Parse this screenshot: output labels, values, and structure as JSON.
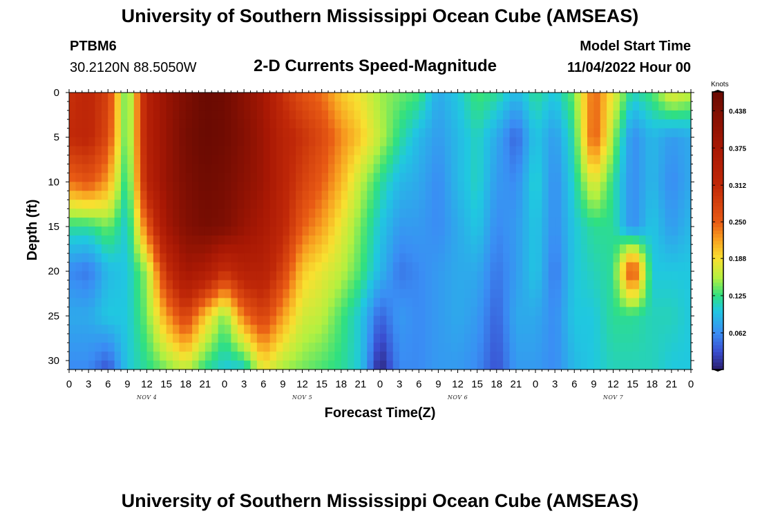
{
  "page": {
    "title_top": "University of Southern Mississippi Ocean Cube (AMSEAS)",
    "title_bottom": "University of Southern Mississippi Ocean Cube (AMSEAS)",
    "station": "PTBM6",
    "coords": "30.2120N  88.5050W",
    "plot_title": "2-D Currents Speed-Magnitude",
    "model_start_label": "Model Start Time",
    "model_start_value": "11/04/2022 Hour 00"
  },
  "chart_data": {
    "type": "heatmap",
    "title": "2-D Currents Speed-Magnitude",
    "xlabel": "Forecast Time(Z)",
    "ylabel": "Depth (ft)",
    "x_range_hours": [
      0,
      96
    ],
    "y_range_ft": [
      0,
      31
    ],
    "y_inverted": true,
    "x_tick_labels": [
      "0",
      "3",
      "6",
      "9",
      "12",
      "15",
      "18",
      "21",
      "0",
      "3",
      "6",
      "9",
      "12",
      "15",
      "18",
      "21",
      "0",
      "3",
      "6",
      "9",
      "12",
      "15",
      "18",
      "21",
      "0",
      "3",
      "6",
      "9",
      "12",
      "15",
      "18",
      "21",
      "0"
    ],
    "x_tick_hours": [
      0,
      3,
      6,
      9,
      12,
      15,
      18,
      21,
      24,
      27,
      30,
      33,
      36,
      39,
      42,
      45,
      48,
      51,
      54,
      57,
      60,
      63,
      66,
      69,
      72,
      75,
      78,
      81,
      84,
      87,
      90,
      93,
      96
    ],
    "y_ticks": [
      0,
      5,
      10,
      15,
      20,
      25,
      30
    ],
    "day_labels": [
      {
        "label": "NOV 4",
        "hour": 12
      },
      {
        "label": "NOV 5",
        "hour": 36
      },
      {
        "label": "NOV 6",
        "hour": 60
      },
      {
        "label": "NOV 7",
        "hour": 84
      }
    ],
    "colorbar": {
      "units": "Knots",
      "min": 0,
      "max": 0.47,
      "ticks": [
        "0.438",
        "0.375",
        "0.312",
        "0.250",
        "0.188",
        "0.125",
        "0.062"
      ],
      "tick_values": [
        0.438,
        0.375,
        0.312,
        0.25,
        0.188,
        0.125,
        0.062
      ]
    },
    "color_stops": [
      {
        "value": 0.0,
        "color": "#2a1e6e"
      },
      {
        "value": 0.03,
        "color": "#3a4ed0"
      },
      {
        "value": 0.062,
        "color": "#3a8ef4"
      },
      {
        "value": 0.1,
        "color": "#20c8e0"
      },
      {
        "value": 0.125,
        "color": "#30e080"
      },
      {
        "value": 0.155,
        "color": "#b4f040"
      },
      {
        "value": 0.188,
        "color": "#f8e030"
      },
      {
        "value": 0.22,
        "color": "#f8a020"
      },
      {
        "value": 0.25,
        "color": "#e85a14"
      },
      {
        "value": 0.312,
        "color": "#c02808"
      },
      {
        "value": 0.375,
        "color": "#a81804"
      },
      {
        "value": 0.47,
        "color": "#6a0a02"
      }
    ],
    "time_series_hours": [
      0,
      3,
      6,
      9,
      12,
      15,
      18,
      21,
      24,
      27,
      30,
      33,
      36,
      39,
      42,
      45,
      48,
      51,
      54,
      57,
      60,
      63,
      66,
      69,
      72,
      75,
      78,
      81,
      84,
      87,
      90,
      93,
      96
    ],
    "depth_series_ft": [
      0,
      5,
      10,
      15,
      20,
      25,
      31
    ],
    "speed_knots_by_depth": [
      [
        0.3,
        0.32,
        0.28,
        0.12,
        0.34,
        0.4,
        0.44,
        0.47,
        0.46,
        0.42,
        0.38,
        0.3,
        0.26,
        0.24,
        0.2,
        0.18,
        0.15,
        0.14,
        0.13,
        0.08,
        0.1,
        0.13,
        0.12,
        0.09,
        0.12,
        0.1,
        0.14,
        0.25,
        0.18,
        0.11,
        0.13,
        0.18,
        0.16
      ],
      [
        0.31,
        0.32,
        0.27,
        0.12,
        0.34,
        0.4,
        0.45,
        0.47,
        0.46,
        0.43,
        0.39,
        0.33,
        0.3,
        0.27,
        0.23,
        0.2,
        0.16,
        0.12,
        0.09,
        0.07,
        0.09,
        0.11,
        0.08,
        0.04,
        0.1,
        0.07,
        0.12,
        0.26,
        0.15,
        0.06,
        0.09,
        0.07,
        0.08
      ],
      [
        0.24,
        0.26,
        0.22,
        0.11,
        0.33,
        0.4,
        0.44,
        0.46,
        0.45,
        0.42,
        0.39,
        0.33,
        0.28,
        0.25,
        0.21,
        0.16,
        0.12,
        0.09,
        0.08,
        0.06,
        0.09,
        0.11,
        0.07,
        0.06,
        0.11,
        0.06,
        0.11,
        0.18,
        0.12,
        0.06,
        0.09,
        0.06,
        0.08
      ],
      [
        0.12,
        0.12,
        0.14,
        0.1,
        0.25,
        0.38,
        0.43,
        0.45,
        0.44,
        0.4,
        0.37,
        0.32,
        0.25,
        0.22,
        0.18,
        0.14,
        0.1,
        0.07,
        0.07,
        0.06,
        0.08,
        0.1,
        0.06,
        0.07,
        0.1,
        0.06,
        0.1,
        0.12,
        0.12,
        0.06,
        0.1,
        0.07,
        0.09
      ],
      [
        0.06,
        0.05,
        0.09,
        0.1,
        0.15,
        0.3,
        0.38,
        0.36,
        0.3,
        0.34,
        0.34,
        0.28,
        0.2,
        0.18,
        0.16,
        0.13,
        0.09,
        0.05,
        0.06,
        0.07,
        0.08,
        0.08,
        0.05,
        0.07,
        0.1,
        0.05,
        0.1,
        0.11,
        0.12,
        0.28,
        0.1,
        0.1,
        0.1
      ],
      [
        0.08,
        0.08,
        0.1,
        0.1,
        0.14,
        0.22,
        0.28,
        0.2,
        0.14,
        0.24,
        0.28,
        0.22,
        0.17,
        0.16,
        0.13,
        0.1,
        0.04,
        0.07,
        0.06,
        0.07,
        0.08,
        0.07,
        0.04,
        0.08,
        0.08,
        0.06,
        0.1,
        0.1,
        0.12,
        0.12,
        0.11,
        0.11,
        0.1
      ],
      [
        0.06,
        0.06,
        0.03,
        0.1,
        0.12,
        0.14,
        0.16,
        0.12,
        0.1,
        0.1,
        0.18,
        0.15,
        0.14,
        0.13,
        0.12,
        0.1,
        0.0,
        0.06,
        0.06,
        0.07,
        0.07,
        0.06,
        0.03,
        0.07,
        0.07,
        0.06,
        0.09,
        0.1,
        0.11,
        0.11,
        0.11,
        0.1,
        0.1
      ]
    ]
  }
}
